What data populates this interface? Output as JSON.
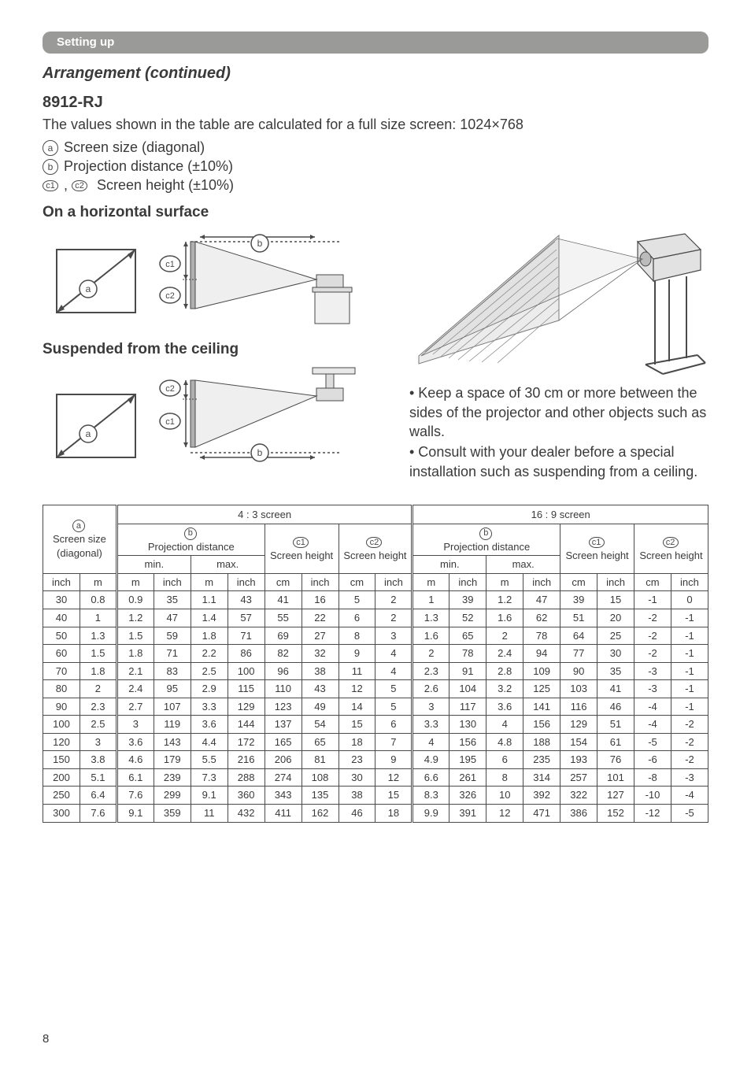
{
  "section": "Setting up",
  "title": "Arrangement (continued)",
  "model": "8912-RJ",
  "intro": "The values shown in the table are calculated for a full size screen: 1024×768",
  "legend": {
    "a": "Screen size (diagonal)",
    "b": "Projection distance (±10%)",
    "c": "Screen height (±10%)"
  },
  "sub_horizontal": "On a horizontal surface",
  "sub_suspended": "Suspended from the ceiling",
  "note1": "• Keep a space of 30 cm or more between the sides of the projector and other objects such as walls.",
  "note2": "• Consult with your dealer before a special installation such as suspending from a ceiling.",
  "table": {
    "top": {
      "screen_size": "Screen size (diagonal)",
      "s43": "4 : 3 screen",
      "s169": "16 : 9 screen",
      "proj": "Projection distance",
      "sh": "Screen height",
      "min": "min.",
      "max": "max."
    },
    "units": [
      "inch",
      "m",
      "m",
      "inch",
      "m",
      "inch",
      "cm",
      "inch",
      "cm",
      "inch",
      "m",
      "inch",
      "m",
      "inch",
      "cm",
      "inch",
      "cm",
      "inch"
    ],
    "rows": [
      [
        30,
        0.8,
        0.9,
        35,
        1.1,
        43,
        41,
        16,
        5,
        2,
        1.0,
        39,
        1.2,
        47,
        39,
        15,
        -1,
        0
      ],
      [
        40,
        1.0,
        1.2,
        47,
        1.4,
        57,
        55,
        22,
        6,
        2,
        1.3,
        52,
        1.6,
        62,
        51,
        20,
        -2,
        -1
      ],
      [
        50,
        1.3,
        1.5,
        59,
        1.8,
        71,
        69,
        27,
        8,
        3,
        1.6,
        65,
        2.0,
        78,
        64,
        25,
        -2,
        -1
      ],
      [
        60,
        1.5,
        1.8,
        71,
        2.2,
        86,
        82,
        32,
        9,
        4,
        2.0,
        78,
        2.4,
        94,
        77,
        30,
        -2,
        -1
      ],
      [
        70,
        1.8,
        2.1,
        83,
        2.5,
        100,
        96,
        38,
        11,
        4,
        2.3,
        91,
        2.8,
        109,
        90,
        35,
        -3,
        -1
      ],
      [
        80,
        2.0,
        2.4,
        95,
        2.9,
        115,
        110,
        43,
        12,
        5,
        2.6,
        104,
        3.2,
        125,
        103,
        41,
        -3,
        -1
      ],
      [
        90,
        2.3,
        2.7,
        107,
        3.3,
        129,
        123,
        49,
        14,
        5,
        3.0,
        117,
        3.6,
        141,
        116,
        46,
        -4,
        -1
      ],
      [
        100,
        2.5,
        3.0,
        119,
        3.6,
        144,
        137,
        54,
        15,
        6,
        3.3,
        130,
        4.0,
        156,
        129,
        51,
        -4,
        -2
      ],
      [
        120,
        3.0,
        3.6,
        143,
        4.4,
        172,
        165,
        65,
        18,
        7,
        4.0,
        156,
        4.8,
        188,
        154,
        61,
        -5,
        -2
      ],
      [
        150,
        3.8,
        4.6,
        179,
        5.5,
        216,
        206,
        81,
        23,
        9,
        4.9,
        195,
        6.0,
        235,
        193,
        76,
        -6,
        -2
      ],
      [
        200,
        5.1,
        6.1,
        239,
        7.3,
        288,
        274,
        108,
        30,
        12,
        6.6,
        261,
        8.0,
        314,
        257,
        101,
        -8,
        -3
      ],
      [
        250,
        6.4,
        7.6,
        299,
        9.1,
        360,
        343,
        135,
        38,
        15,
        8.3,
        326,
        10.0,
        392,
        322,
        127,
        -10,
        -4
      ],
      [
        300,
        7.6,
        9.1,
        359,
        11.0,
        432,
        411,
        162,
        46,
        18,
        9.9,
        391,
        12.0,
        471,
        386,
        152,
        -12,
        -5
      ]
    ]
  },
  "page": "8"
}
